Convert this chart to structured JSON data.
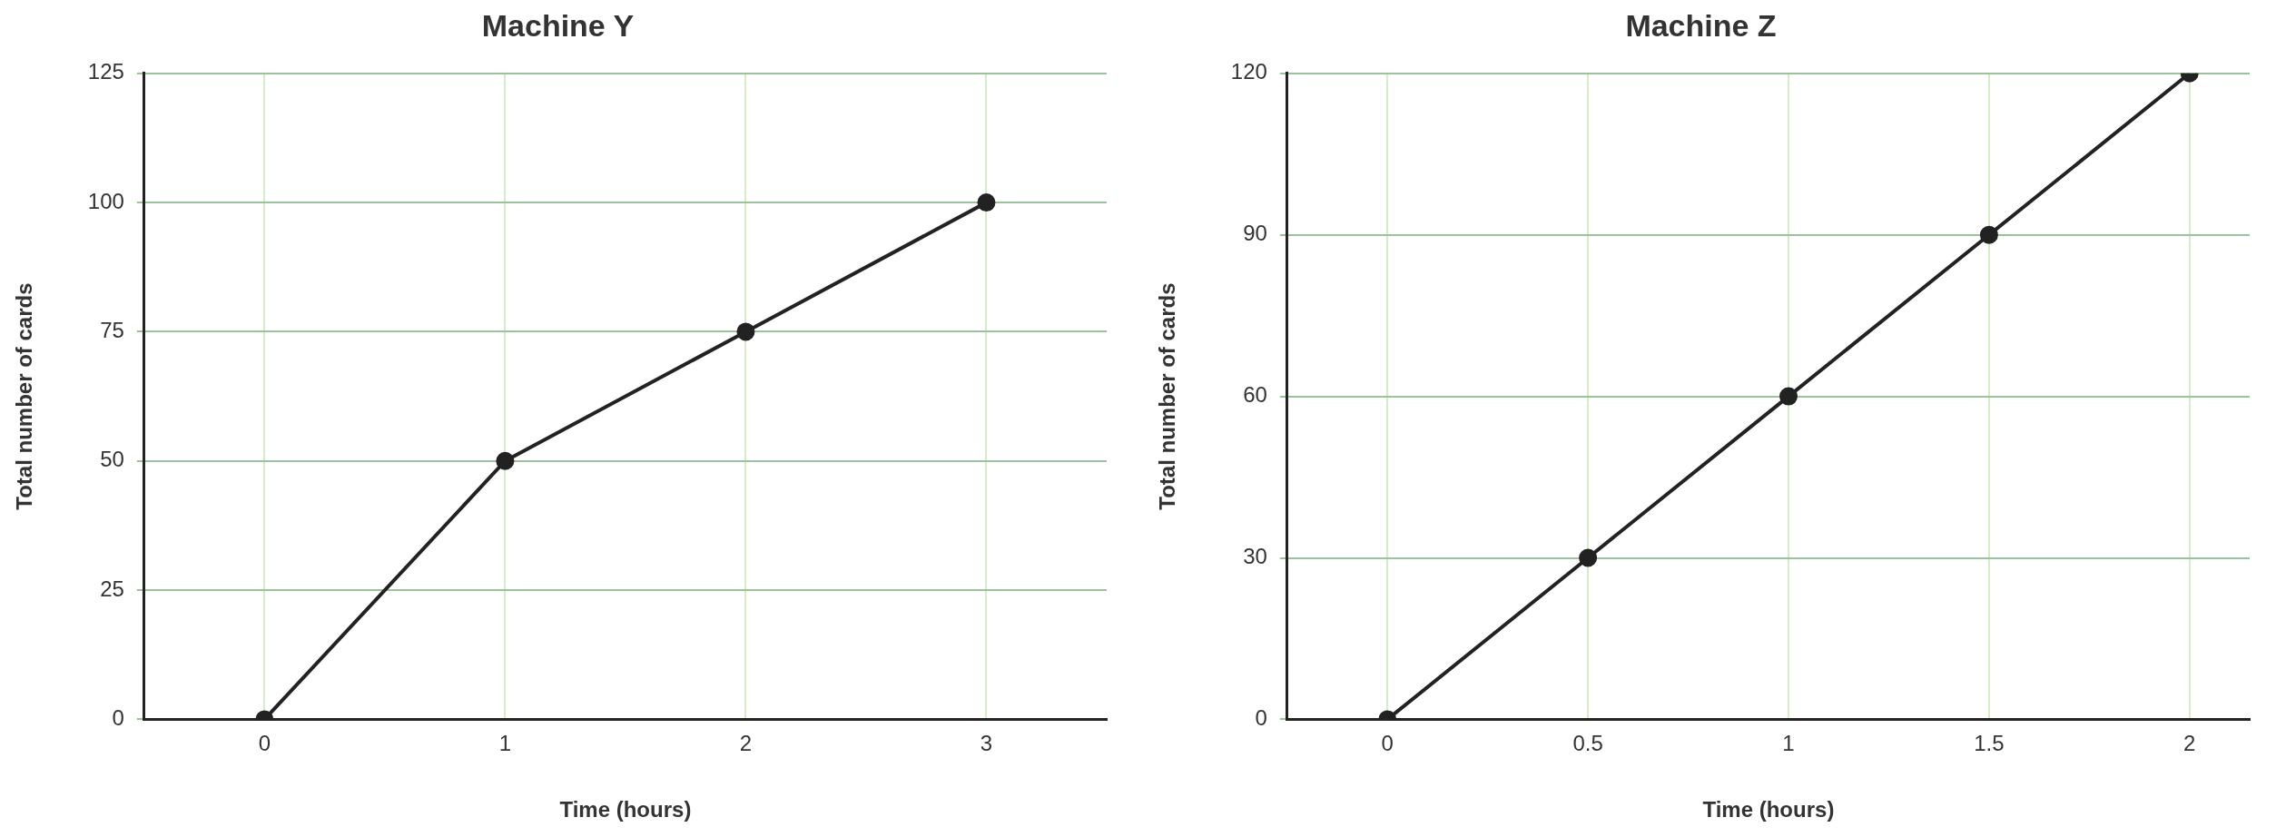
{
  "chart_data": [
    {
      "type": "line",
      "title": "Machine Y",
      "xlabel": "Time (hours)",
      "ylabel": "Total number of cards",
      "x": [
        0,
        1,
        2,
        3
      ],
      "series": [
        {
          "color": "#222222",
          "values": [
            0,
            50,
            75,
            100
          ]
        }
      ],
      "xlim": [
        -0.5,
        3.5
      ],
      "xticks": [
        0,
        1,
        2,
        3
      ],
      "ylim": [
        0,
        125
      ],
      "yticks": [
        0,
        25,
        50,
        75,
        100,
        125
      ],
      "grid": true,
      "legend": false,
      "marker": "circle",
      "line_style": "solid"
    },
    {
      "type": "line",
      "title": "Machine Z",
      "xlabel": "Time (hours)",
      "ylabel": "Total number of cards",
      "x": [
        0,
        0.5,
        1,
        1.5,
        2
      ],
      "series": [
        {
          "color": "#222222",
          "values": [
            0,
            30,
            60,
            90,
            120
          ]
        }
      ],
      "xlim": [
        -0.25,
        2.15
      ],
      "xticks": [
        0,
        0.5,
        1,
        1.5,
        2
      ],
      "ylim": [
        0,
        120
      ],
      "yticks": [
        0,
        30,
        60,
        90,
        120
      ],
      "grid": true,
      "legend": false,
      "marker": "circle",
      "line_style": "solid"
    }
  ]
}
